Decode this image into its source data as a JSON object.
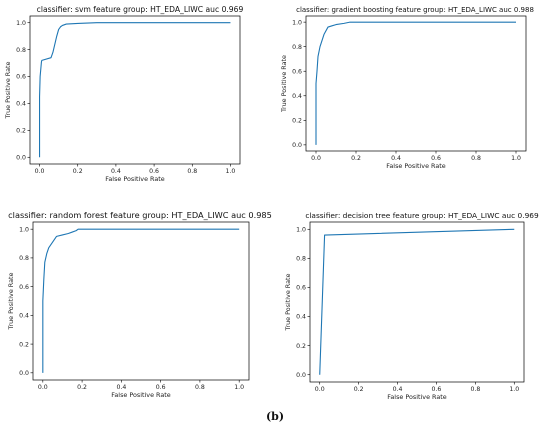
{
  "caption": "(b)",
  "chart_data": [
    {
      "type": "line",
      "title": "classifier: svm feature group: HT_EDA_LIWC auc 0.969",
      "xlabel": "False Positive Rate",
      "ylabel": "True Positive Rate",
      "xlim": [
        0,
        1
      ],
      "ylim": [
        0,
        1
      ],
      "xticks": [
        "0.0",
        "0.2",
        "0.4",
        "0.6",
        "0.8",
        "1.0"
      ],
      "yticks": [
        "0.0",
        "0.2",
        "0.4",
        "0.6",
        "0.8",
        "1.0"
      ],
      "grid": false,
      "series": [
        {
          "color": "#1f77b4",
          "x": [
            0.0,
            0.0,
            0.003,
            0.01,
            0.012,
            0.06,
            0.07,
            0.08,
            0.09,
            0.1,
            0.11,
            0.12,
            0.14,
            0.2,
            0.3,
            0.5,
            0.7,
            1.0
          ],
          "y": [
            0.0,
            0.45,
            0.6,
            0.71,
            0.72,
            0.74,
            0.78,
            0.84,
            0.9,
            0.95,
            0.97,
            0.98,
            0.99,
            0.995,
            1.0,
            1.0,
            1.0,
            1.0
          ]
        }
      ]
    },
    {
      "type": "line",
      "title": "classifier: gradient boosting feature group: HT_EDA_LIWC auc 0.988",
      "xlabel": "False Positive Rate",
      "ylabel": "True Positive Rate",
      "xlim": [
        0,
        1
      ],
      "ylim": [
        0,
        1
      ],
      "xticks": [
        "0.0",
        "0.2",
        "0.4",
        "0.6",
        "0.8",
        "1.0"
      ],
      "yticks": [
        "0.0",
        "0.2",
        "0.4",
        "0.6",
        "0.8",
        "1.0"
      ],
      "grid": false,
      "series": [
        {
          "color": "#1f77b4",
          "x": [
            0.0,
            0.0,
            0.005,
            0.01,
            0.015,
            0.02,
            0.04,
            0.06,
            0.08,
            0.1,
            0.14,
            0.17,
            0.3,
            1.0
          ],
          "y": [
            0.0,
            0.5,
            0.6,
            0.72,
            0.76,
            0.8,
            0.9,
            0.96,
            0.97,
            0.98,
            0.99,
            1.0,
            1.0,
            1.0
          ]
        }
      ]
    },
    {
      "type": "line",
      "title": "classifier: random forest feature group: HT_EDA_LIWC auc 0.985",
      "xlabel": "False Positive Rate",
      "ylabel": "True Positive Rate",
      "xlim": [
        0,
        1
      ],
      "ylim": [
        0,
        1
      ],
      "xticks": [
        "0.0",
        "0.2",
        "0.4",
        "0.6",
        "0.8",
        "1.0"
      ],
      "yticks": [
        "0.0",
        "0.2",
        "0.4",
        "0.6",
        "0.8",
        "1.0"
      ],
      "grid": false,
      "series": [
        {
          "color": "#1f77b4",
          "x": [
            0.0,
            0.0,
            0.005,
            0.01,
            0.02,
            0.03,
            0.05,
            0.07,
            0.1,
            0.13,
            0.15,
            0.17,
            0.18,
            0.3,
            1.0
          ],
          "y": [
            0.0,
            0.5,
            0.65,
            0.77,
            0.83,
            0.87,
            0.91,
            0.95,
            0.96,
            0.97,
            0.98,
            0.99,
            1.0,
            1.0,
            1.0
          ]
        }
      ]
    },
    {
      "type": "line",
      "title": "classifier: decision tree feature group: HT_EDA_LIWC auc 0.969",
      "xlabel": "False Positive Rate",
      "ylabel": "True Positive Rate",
      "xlim": [
        0,
        1
      ],
      "ylim": [
        0,
        1
      ],
      "xticks": [
        "0.0",
        "0.2",
        "0.4",
        "0.6",
        "0.8",
        "1.0"
      ],
      "yticks": [
        "0.0",
        "0.2",
        "0.4",
        "0.6",
        "0.8",
        "1.0"
      ],
      "grid": false,
      "series": [
        {
          "color": "#1f77b4",
          "x": [
            0.0,
            0.025,
            1.0
          ],
          "y": [
            0.0,
            0.96,
            1.0
          ]
        }
      ]
    }
  ]
}
